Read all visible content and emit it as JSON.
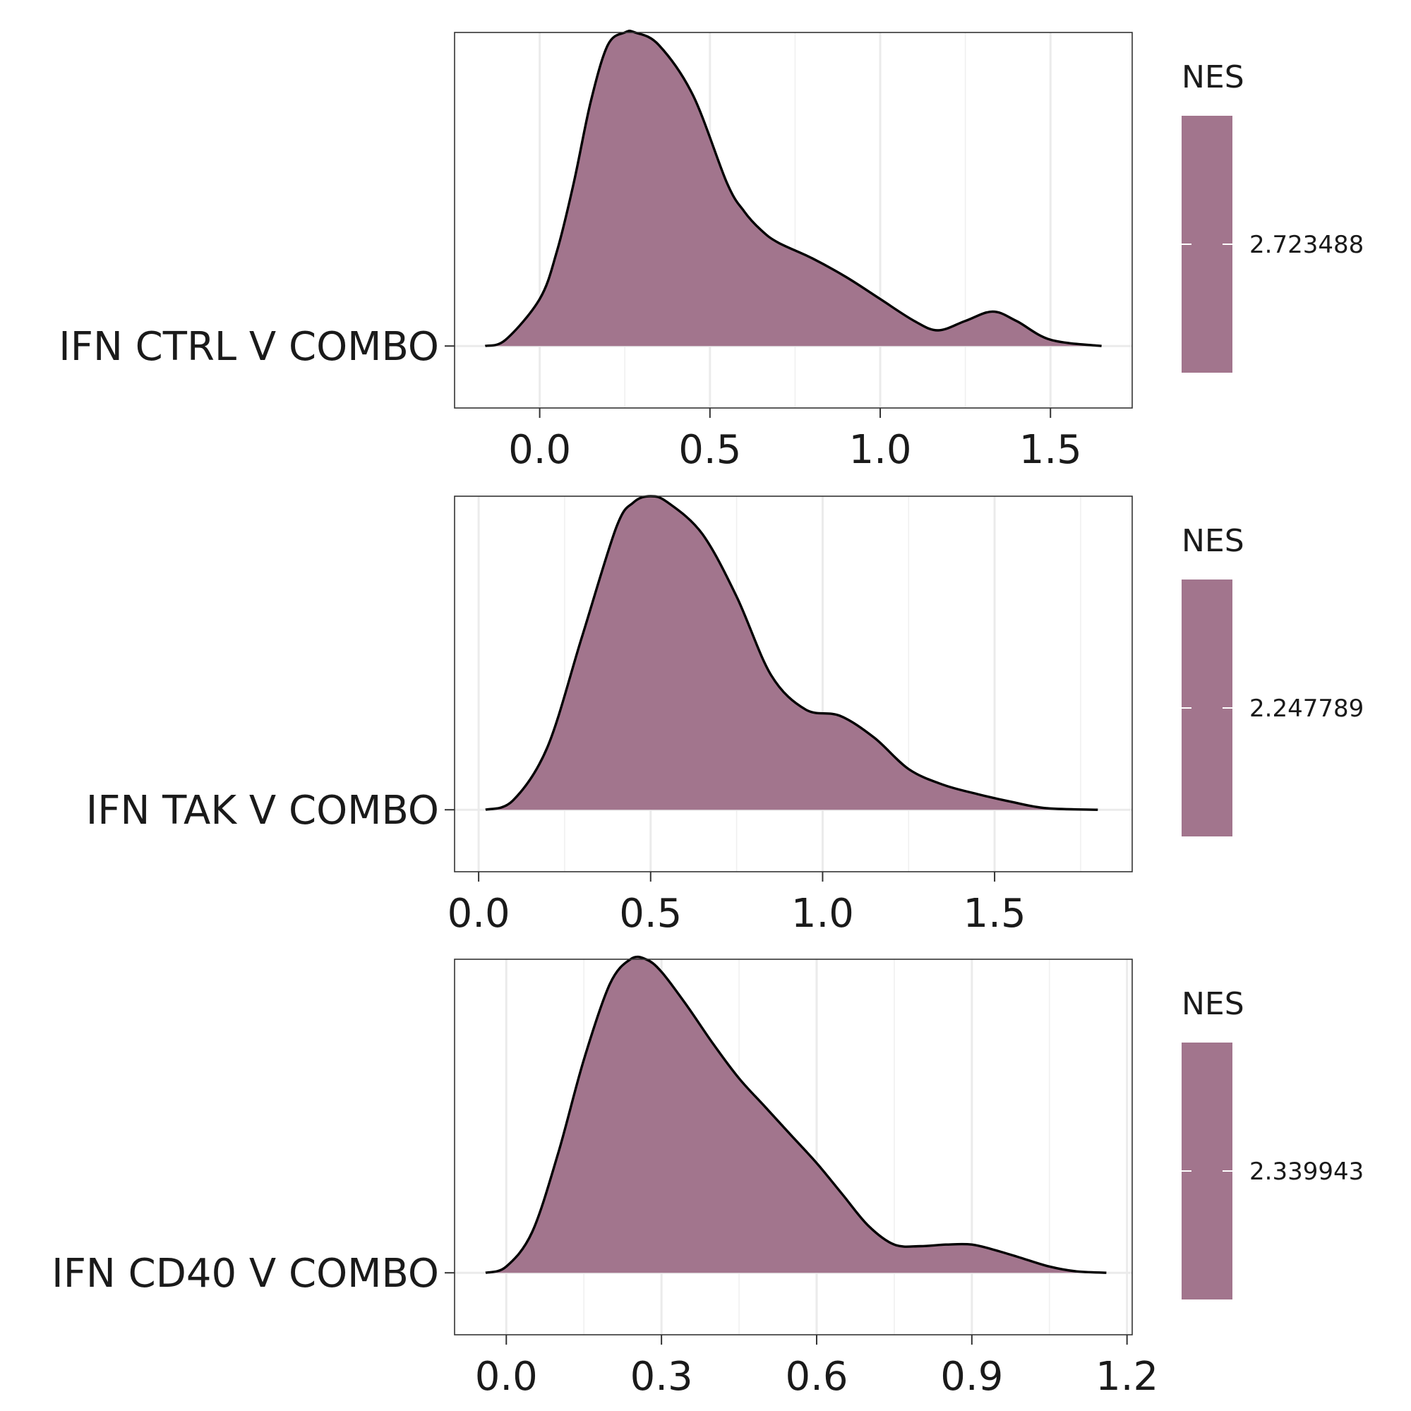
{
  "chart_data": [
    {
      "type": "area",
      "row_label": "IFN CTRL V COMBO",
      "xlim": [
        -0.25,
        1.74
      ],
      "x_ticks": [
        0.0,
        0.5,
        1.0,
        1.5
      ],
      "x_tick_labels": [
        "0.0",
        "0.5",
        "1.0",
        "1.5"
      ],
      "legend_title": "NES",
      "legend_value": "2.723488",
      "fill_color": "#a2758d",
      "density": {
        "x": [
          -0.16,
          -0.1,
          0.0,
          0.05,
          0.1,
          0.15,
          0.2,
          0.25,
          0.28,
          0.35,
          0.45,
          0.55,
          0.6,
          0.65,
          0.7,
          0.8,
          0.9,
          1.0,
          1.1,
          1.17,
          1.25,
          1.33,
          1.4,
          1.5,
          1.65
        ],
        "y": [
          0.0,
          0.02,
          0.15,
          0.3,
          0.52,
          0.78,
          0.96,
          1.0,
          1.0,
          0.96,
          0.8,
          0.52,
          0.43,
          0.37,
          0.33,
          0.28,
          0.22,
          0.15,
          0.08,
          0.05,
          0.08,
          0.11,
          0.08,
          0.02,
          0.0
        ]
      }
    },
    {
      "type": "area",
      "row_label": "IFN TAK V COMBO",
      "xlim": [
        -0.07,
        1.9
      ],
      "x_ticks": [
        0.0,
        0.5,
        1.0,
        1.5
      ],
      "x_tick_labels": [
        "0.0",
        "0.5",
        "1.0",
        "1.5"
      ],
      "legend_title": "NES",
      "legend_value": "2.247789",
      "fill_color": "#a2758d",
      "density": {
        "x": [
          0.02,
          0.1,
          0.2,
          0.3,
          0.4,
          0.45,
          0.5,
          0.55,
          0.65,
          0.75,
          0.85,
          0.95,
          1.05,
          1.15,
          1.25,
          1.35,
          1.45,
          1.55,
          1.65,
          1.8
        ],
        "y": [
          0.0,
          0.03,
          0.2,
          0.55,
          0.9,
          0.98,
          1.0,
          0.98,
          0.88,
          0.68,
          0.43,
          0.32,
          0.3,
          0.23,
          0.13,
          0.08,
          0.05,
          0.025,
          0.005,
          0.0
        ]
      }
    },
    {
      "type": "area",
      "row_label": "IFN CD40 V COMBO",
      "xlim": [
        -0.1,
        1.21
      ],
      "x_ticks": [
        0.0,
        0.3,
        0.6,
        0.9,
        1.2
      ],
      "x_tick_labels": [
        "0.0",
        "0.3",
        "0.6",
        "0.9",
        "1.2"
      ],
      "legend_title": "NES",
      "legend_value": "2.339943",
      "fill_color": "#a2758d",
      "density": {
        "x": [
          -0.04,
          0.0,
          0.05,
          0.1,
          0.15,
          0.2,
          0.24,
          0.27,
          0.3,
          0.35,
          0.4,
          0.45,
          0.5,
          0.55,
          0.6,
          0.65,
          0.7,
          0.75,
          0.8,
          0.85,
          0.9,
          0.95,
          1.0,
          1.05,
          1.1,
          1.16
        ],
        "y": [
          0.0,
          0.02,
          0.13,
          0.38,
          0.68,
          0.92,
          1.0,
          1.0,
          0.96,
          0.85,
          0.73,
          0.62,
          0.53,
          0.44,
          0.35,
          0.25,
          0.15,
          0.09,
          0.085,
          0.09,
          0.09,
          0.07,
          0.045,
          0.02,
          0.005,
          0.0
        ]
      }
    }
  ]
}
